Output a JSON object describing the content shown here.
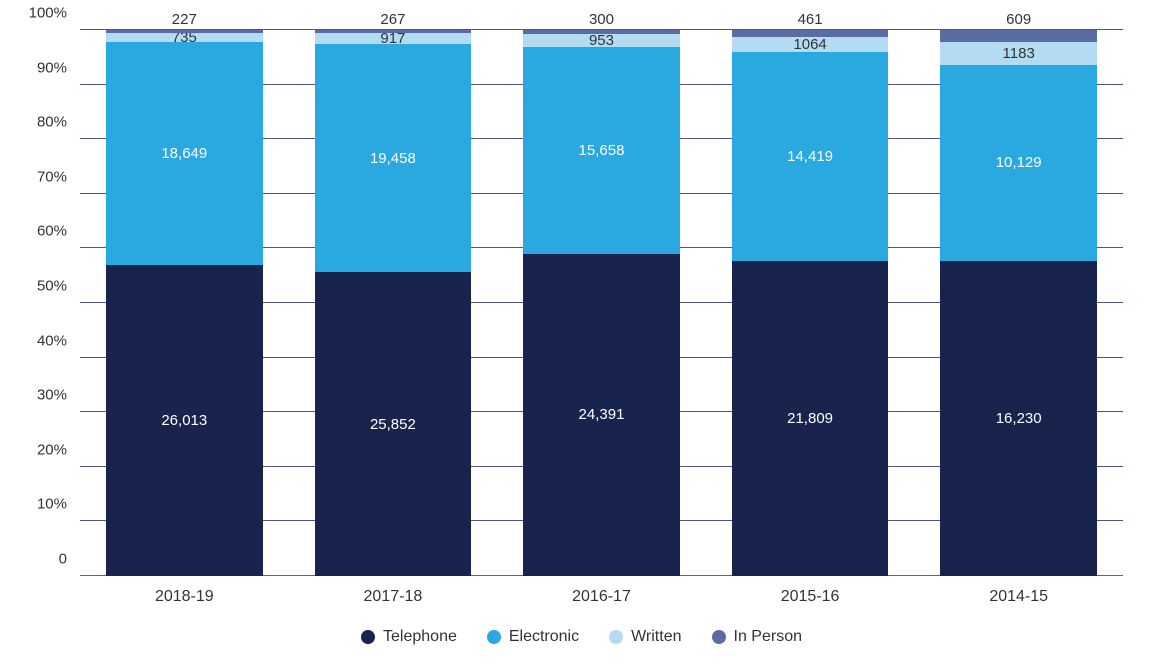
{
  "chart": {
    "type": "stacked-bar-100pct",
    "background_color": "#ffffff",
    "grid_color": "#2b3a67",
    "baseline_color": "#666666",
    "axis_label_color": "#333333",
    "axis_fontsize": 15,
    "ylim": [
      0,
      100
    ],
    "yticks": [
      0,
      10,
      20,
      30,
      40,
      50,
      60,
      70,
      80,
      90,
      100
    ],
    "ytick_labels": [
      "0",
      "10%",
      "20%",
      "30%",
      "40%",
      "50%",
      "60%",
      "70%",
      "80%",
      "90%",
      "100%"
    ],
    "bar_width_ratio": 0.75,
    "categories": [
      "2018-19",
      "2017-18",
      "2016-17",
      "2015-16",
      "2014-15"
    ],
    "series": [
      {
        "key": "telephone",
        "label": "Telephone",
        "color": "#18234e",
        "label_color": "#ffffff"
      },
      {
        "key": "electronic",
        "label": "Electronic",
        "color": "#2aa9e0",
        "label_color": "#ffffff"
      },
      {
        "key": "written",
        "label": "Written",
        "color": "#b3dcf2",
        "label_color": "#333333"
      },
      {
        "key": "inperson",
        "label": "In Person",
        "color": "#5b6ca3",
        "label_color": "#333333"
      }
    ],
    "data": [
      {
        "telephone": 26013,
        "electronic": 18649,
        "written": 735,
        "inperson": 227
      },
      {
        "telephone": 25852,
        "electronic": 19458,
        "written": 917,
        "inperson": 267
      },
      {
        "telephone": 24391,
        "electronic": 15658,
        "written": 953,
        "inperson": 300
      },
      {
        "telephone": 21809,
        "electronic": 14419,
        "written": 1064,
        "inperson": 461
      },
      {
        "telephone": 16230,
        "electronic": 10129,
        "written": 1183,
        "inperson": 609
      }
    ],
    "value_labels": [
      {
        "telephone": "26,013",
        "electronic": "18,649",
        "written": "735",
        "inperson": "227"
      },
      {
        "telephone": "25,852",
        "electronic": "19,458",
        "written": "917",
        "inperson": "267"
      },
      {
        "telephone": "24,391",
        "electronic": "15,658",
        "written": "953",
        "inperson": "300"
      },
      {
        "telephone": "21,809",
        "electronic": "14,419",
        "written": "1064",
        "inperson": "461"
      },
      {
        "telephone": "16,230",
        "electronic": "10,129",
        "written": "1183",
        "inperson": "609"
      }
    ],
    "legend_position": "bottom-center",
    "label_fontsize": 15
  }
}
